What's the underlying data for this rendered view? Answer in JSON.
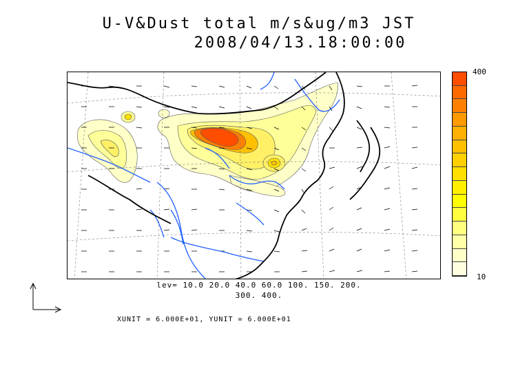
{
  "title": {
    "line1": "U-V&Dust total m/s&ug/m3 JST",
    "line2": "2008/04/13.18:00:00"
  },
  "colorbar": {
    "max_label": "400",
    "min_label": "10",
    "colors": [
      "#ff4e00",
      "#ff6a00",
      "#ff8000",
      "#ff9a00",
      "#ffb000",
      "#ffc000",
      "#ffd000",
      "#ffe000",
      "#fff000",
      "#ffff00",
      "#ffff40",
      "#ffff80",
      "#ffffa8",
      "#ffffc8",
      "#ffffe0"
    ]
  },
  "contour_levels": {
    "line1": "lev= 10.0 20.0 40.0 60.0 100. 150. 200.",
    "line2": "300. 400."
  },
  "units": "XUNIT = 6.000E+01, YUNIT = 6.000E+01",
  "colors": {
    "rivers": "#1f5fff",
    "coast": "#000000",
    "dust_high": "#ff4e00",
    "dust_low": "#ffffc8"
  }
}
